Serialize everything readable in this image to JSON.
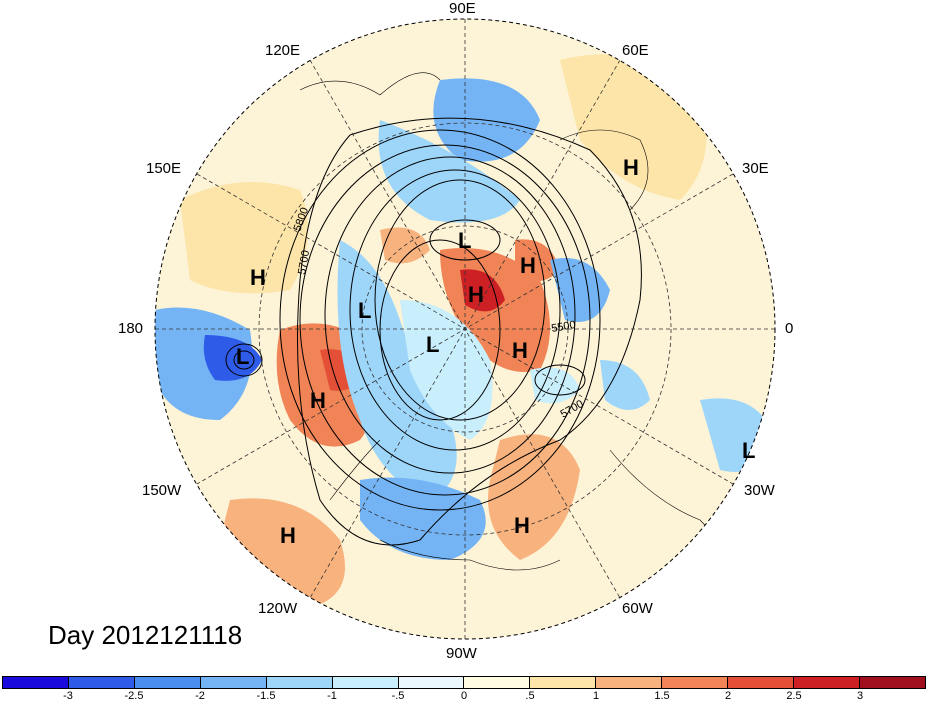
{
  "title": "Day 2012121118",
  "longitude_labels": {
    "lon_90e": "90E",
    "lon_60e": "60E",
    "lon_30e": "30E",
    "lon_0": "0",
    "lon_30w": "30W",
    "lon_60w": "60W",
    "lon_90w": "90W",
    "lon_120w": "120W",
    "lon_150w": "150W",
    "lon_180": "180",
    "lon_150e": "150E",
    "lon_120e": "120E"
  },
  "contour_labels": [
    "5800",
    "5700",
    "5500",
    "5700"
  ],
  "pressure_centers": {
    "h1": "H",
    "h2": "H",
    "h3": "H",
    "h4": "H",
    "h5": "H",
    "h6": "H",
    "h7": "H",
    "h8": "H",
    "l1": "L",
    "l2": "L",
    "l3": "L",
    "l4": "L",
    "l5": "L"
  },
  "colorbar": {
    "colors": [
      "#1a0adb",
      "#2e5be8",
      "#4a8ff0",
      "#74b4f5",
      "#9ed6fa",
      "#c9eefc",
      "#eaf8fd",
      "#fffbe0",
      "#fde4a8",
      "#f8b27e",
      "#f08456",
      "#e45037",
      "#cc2024",
      "#a00f1d"
    ],
    "ticks": [
      "-3",
      "-2.5",
      "-2",
      "-1.5",
      "-1",
      "-.5",
      "0",
      ".5",
      "1",
      "1.5",
      "2",
      "2.5",
      "3"
    ]
  }
}
